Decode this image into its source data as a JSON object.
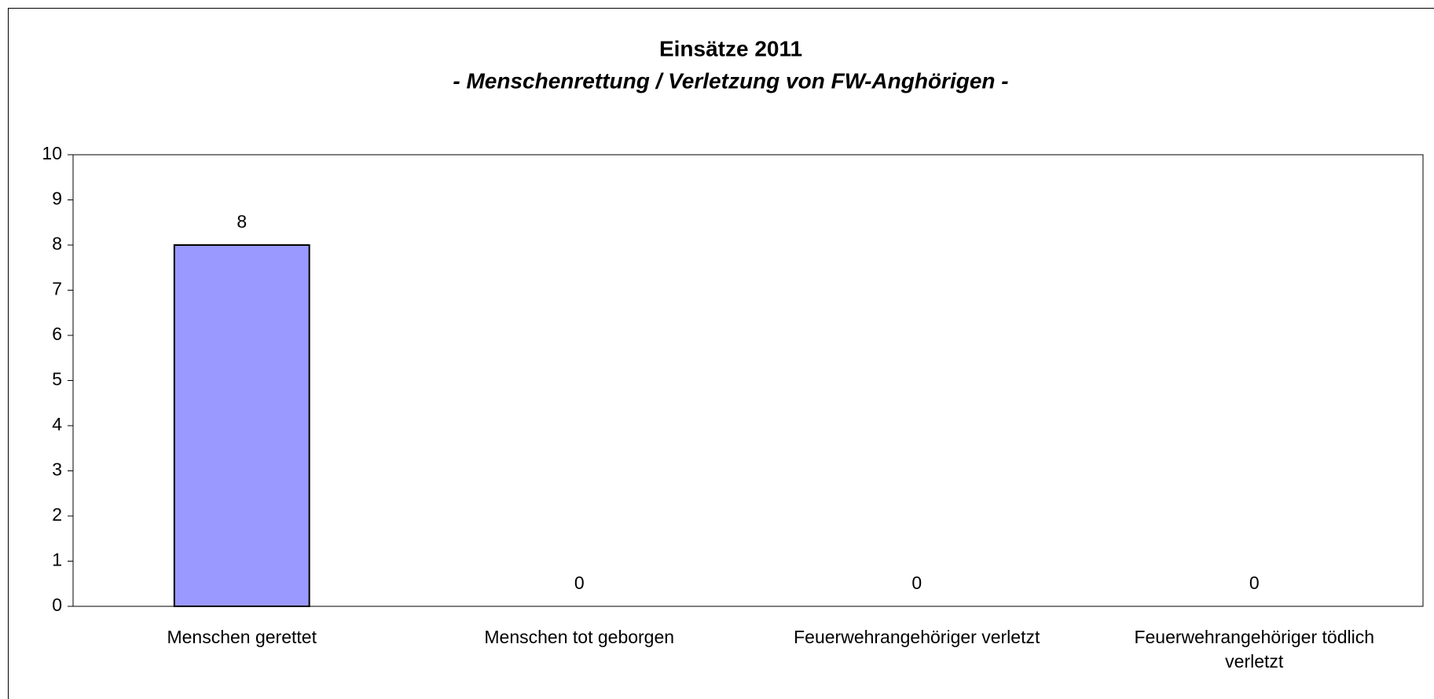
{
  "chart_data": {
    "type": "bar",
    "title": "Einsätze 2011",
    "subtitle": "- Menschenrettung / Verletzung von FW-Anghörigen -",
    "categories": [
      "Menschen gerettet",
      "Menschen tot geborgen",
      "Feuerwehrangehöriger verletzt",
      "Feuerwehrangehöriger tödlich verletzt"
    ],
    "values": [
      8,
      0,
      0,
      0
    ],
    "color": "#9999ff",
    "ylim": [
      0,
      10
    ],
    "yticks": [
      0,
      1,
      2,
      3,
      4,
      5,
      6,
      7,
      8,
      9,
      10
    ],
    "grid": false
  }
}
